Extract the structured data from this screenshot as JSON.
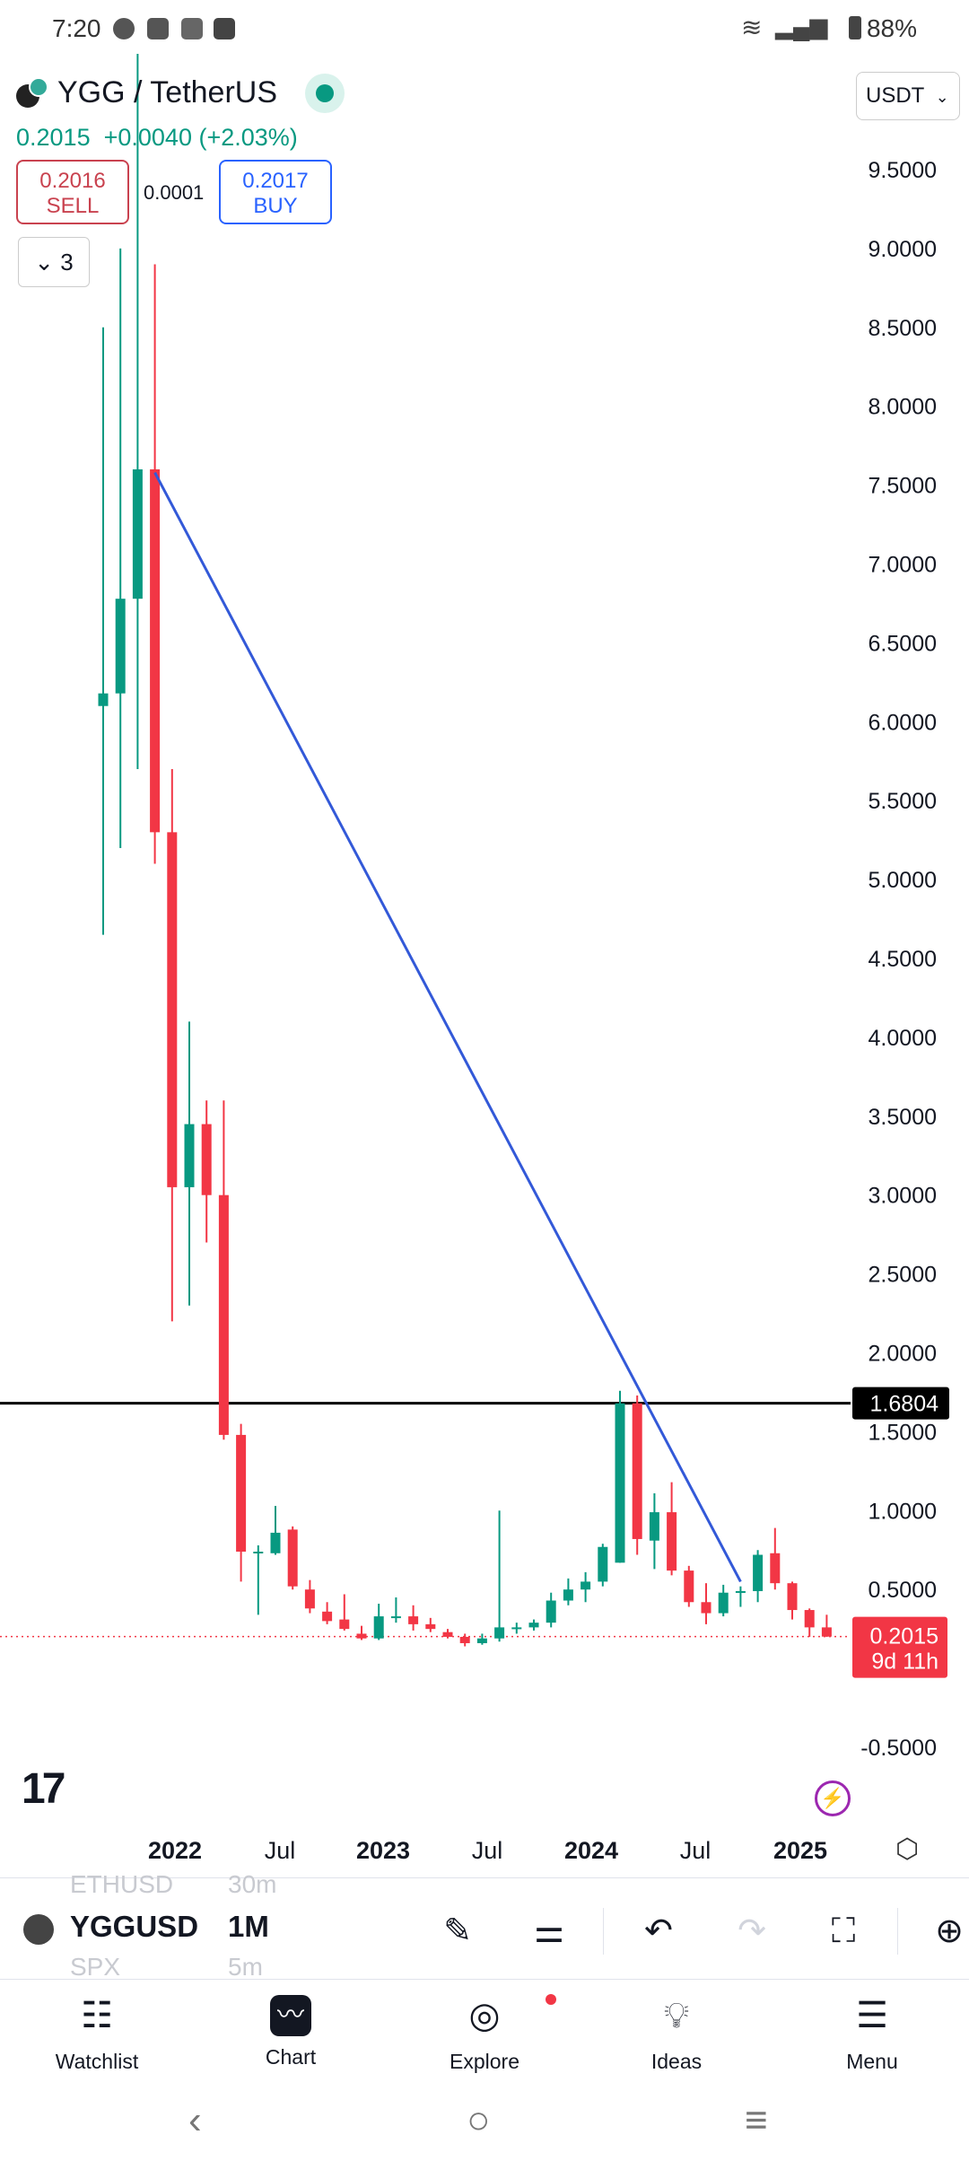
{
  "status_bar": {
    "time": "7:20",
    "battery": "88%"
  },
  "header": {
    "symbol_title": "YGG / TetherUS",
    "last_price": "0.2015",
    "change": "+0.0040",
    "change_pct": "(+2.03%)",
    "sell_price": "0.2016",
    "sell_label": "SELL",
    "buy_price": "0.2017",
    "buy_label": "BUY",
    "spread": "0.0001",
    "collapse_count": "3",
    "currency": "USDT"
  },
  "chart_data": {
    "type": "candlestick",
    "interval": "1M",
    "price_ticks": [
      "9.5000",
      "9.0000",
      "8.5000",
      "8.0000",
      "7.5000",
      "7.0000",
      "6.5000",
      "6.0000",
      "5.5000",
      "5.0000",
      "4.5000",
      "4.0000",
      "3.5000",
      "3.0000",
      "2.5000",
      "2.0000",
      "1.5000",
      "1.0000",
      "0.5000",
      "-0.5000"
    ],
    "time_ticks": [
      {
        "label": "2022",
        "major": true
      },
      {
        "label": "Jul",
        "major": false
      },
      {
        "label": "2023",
        "major": true
      },
      {
        "label": "Jul",
        "major": false
      },
      {
        "label": "2024",
        "major": true
      },
      {
        "label": "Jul",
        "major": false
      },
      {
        "label": "2025",
        "major": true
      }
    ],
    "horizontal_line_label": "1.6804",
    "current_price_label": "0.2015",
    "countdown_label": "9d 11h",
    "colors": {
      "up": "#089981",
      "down": "#f23645",
      "trendline": "#3359d8",
      "hline": "#000000"
    },
    "candles": [
      {
        "o": 6.1,
        "h": 8.5,
        "l": 4.65,
        "c": 6.18
      },
      {
        "o": 6.18,
        "h": 9.0,
        "l": 5.2,
        "c": 6.78
      },
      {
        "o": 6.78,
        "h": 11.0,
        "l": 5.7,
        "c": 7.6
      },
      {
        "o": 7.6,
        "h": 8.9,
        "l": 5.1,
        "c": 5.3
      },
      {
        "o": 5.3,
        "h": 5.7,
        "l": 2.2,
        "c": 3.05
      },
      {
        "o": 3.05,
        "h": 4.1,
        "l": 2.3,
        "c": 3.45
      },
      {
        "o": 3.45,
        "h": 3.6,
        "l": 2.7,
        "c": 3.0
      },
      {
        "o": 3.0,
        "h": 3.6,
        "l": 1.45,
        "c": 1.48
      },
      {
        "o": 1.48,
        "h": 1.55,
        "l": 0.55,
        "c": 0.74
      },
      {
        "o": 0.74,
        "h": 0.78,
        "l": 0.34,
        "c": 0.74
      },
      {
        "o": 0.73,
        "h": 1.03,
        "l": 0.72,
        "c": 0.86
      },
      {
        "o": 0.88,
        "h": 0.9,
        "l": 0.5,
        "c": 0.52
      },
      {
        "o": 0.5,
        "h": 0.56,
        "l": 0.35,
        "c": 0.38
      },
      {
        "o": 0.36,
        "h": 0.42,
        "l": 0.28,
        "c": 0.3
      },
      {
        "o": 0.31,
        "h": 0.47,
        "l": 0.24,
        "c": 0.25
      },
      {
        "o": 0.22,
        "h": 0.27,
        "l": 0.18,
        "c": 0.19
      },
      {
        "o": 0.19,
        "h": 0.41,
        "l": 0.18,
        "c": 0.33
      },
      {
        "o": 0.32,
        "h": 0.45,
        "l": 0.29,
        "c": 0.33
      },
      {
        "o": 0.33,
        "h": 0.4,
        "l": 0.24,
        "c": 0.28
      },
      {
        "o": 0.28,
        "h": 0.32,
        "l": 0.23,
        "c": 0.25
      },
      {
        "o": 0.23,
        "h": 0.25,
        "l": 0.19,
        "c": 0.2
      },
      {
        "o": 0.2,
        "h": 0.22,
        "l": 0.14,
        "c": 0.16
      },
      {
        "o": 0.16,
        "h": 0.22,
        "l": 0.15,
        "c": 0.19
      },
      {
        "o": 0.19,
        "h": 1.0,
        "l": 0.17,
        "c": 0.26
      },
      {
        "o": 0.25,
        "h": 0.29,
        "l": 0.22,
        "c": 0.26
      },
      {
        "o": 0.26,
        "h": 0.31,
        "l": 0.24,
        "c": 0.29
      },
      {
        "o": 0.29,
        "h": 0.48,
        "l": 0.26,
        "c": 0.43
      },
      {
        "o": 0.43,
        "h": 0.57,
        "l": 0.4,
        "c": 0.5
      },
      {
        "o": 0.5,
        "h": 0.61,
        "l": 0.42,
        "c": 0.55
      },
      {
        "o": 0.55,
        "h": 0.79,
        "l": 0.52,
        "c": 0.77
      },
      {
        "o": 0.67,
        "h": 1.76,
        "l": 0.67,
        "c": 1.68
      },
      {
        "o": 1.68,
        "h": 1.73,
        "l": 0.72,
        "c": 0.82
      },
      {
        "o": 0.81,
        "h": 1.11,
        "l": 0.63,
        "c": 0.99
      },
      {
        "o": 0.99,
        "h": 1.18,
        "l": 0.59,
        "c": 0.62
      },
      {
        "o": 0.62,
        "h": 0.65,
        "l": 0.39,
        "c": 0.42
      },
      {
        "o": 0.42,
        "h": 0.54,
        "l": 0.28,
        "c": 0.35
      },
      {
        "o": 0.35,
        "h": 0.53,
        "l": 0.33,
        "c": 0.48
      },
      {
        "o": 0.48,
        "h": 0.52,
        "l": 0.39,
        "c": 0.49
      },
      {
        "o": 0.49,
        "h": 0.75,
        "l": 0.42,
        "c": 0.72
      },
      {
        "o": 0.73,
        "h": 0.89,
        "l": 0.5,
        "c": 0.54
      },
      {
        "o": 0.54,
        "h": 0.55,
        "l": 0.31,
        "c": 0.37
      },
      {
        "o": 0.37,
        "h": 0.38,
        "l": 0.2,
        "c": 0.26
      },
      {
        "o": 0.26,
        "h": 0.34,
        "l": 0.2,
        "c": 0.2015
      }
    ],
    "trendline": {
      "from": {
        "candle": 3,
        "price": 7.58
      },
      "to": {
        "candle": 37,
        "price": 0.55
      }
    },
    "horizontal_line_price": 1.6804
  },
  "toolbar": {
    "faded_symbol_above": "ETHUSD",
    "faded_interval_above": "30m",
    "symbol": "YGGUSD",
    "interval": "1M",
    "faded_symbol_below": "SPX",
    "faded_interval_below": "5m"
  },
  "nav": {
    "watchlist": "Watchlist",
    "chart": "Chart",
    "explore": "Explore",
    "ideas": "Ideas",
    "menu": "Menu"
  }
}
